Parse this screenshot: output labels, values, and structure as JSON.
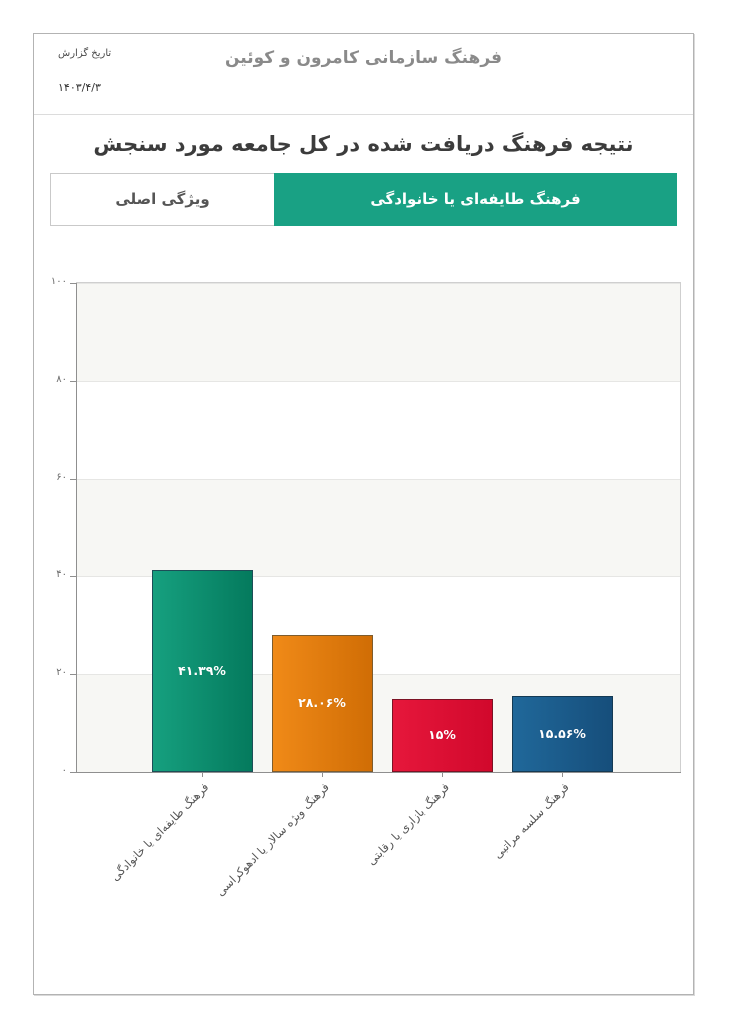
{
  "page": {
    "header": {
      "title": "فرهنگ سازمانی کامرون و کوئین",
      "date_label": "تاریخ گزارش",
      "date_value": "۱۴۰۳/۴/۳"
    },
    "section_title": "نتیجه فرهنگ دریافت شده در کل جامعه مورد سنجش",
    "feature_row": {
      "label": "ویژگی اصلی",
      "value": "فرهنگ طایفه‌ای یا خانوادگی"
    }
  },
  "colors": {
    "feature_value_bg": "#19a184",
    "plot_border": "#cfcfcf",
    "axis": "#8f8f8f",
    "gridline": "#e6e6e4"
  },
  "chart_data": {
    "type": "bar",
    "title": "",
    "xlabel": "",
    "ylabel": "",
    "legend": "none",
    "grid": true,
    "ylim": [
      0,
      100
    ],
    "yticks": [
      0,
      20,
      40,
      60,
      80,
      100
    ],
    "ytick_labels": [
      "۰",
      "۲۰",
      "۴۰",
      "۶۰",
      "۸۰",
      "۱۰۰"
    ],
    "band_ranges": [
      [
        0,
        20
      ],
      [
        40,
        60
      ],
      [
        80,
        100
      ]
    ],
    "band_color": "#f7f7f4",
    "categories": [
      "فرهنگ طایفه‌ای یا خانوادگی",
      "فرهنگ ویژه سالار یا ادهوکراسی",
      "فرهنگ بازاری یا رقابتی",
      "فرهنگ سلسه مراتبی"
    ],
    "values": [
      41.39,
      28.06,
      15,
      15.56
    ],
    "value_labels": [
      "۴۱.۳۹%",
      "۲۸.۰۶%",
      "۱۵%",
      "۱۵.۵۶%"
    ],
    "bar_colors": [
      [
        "#16a07f",
        "#047a5d"
      ],
      [
        "#f08a18",
        "#d06d05"
      ],
      [
        "#e6173b",
        "#d1082c"
      ],
      [
        "#20689a",
        "#164e7b"
      ]
    ],
    "bar_border_colors": [
      "#1d4e57",
      "#7d5c2e",
      "#7c1224",
      "#143a54"
    ]
  }
}
